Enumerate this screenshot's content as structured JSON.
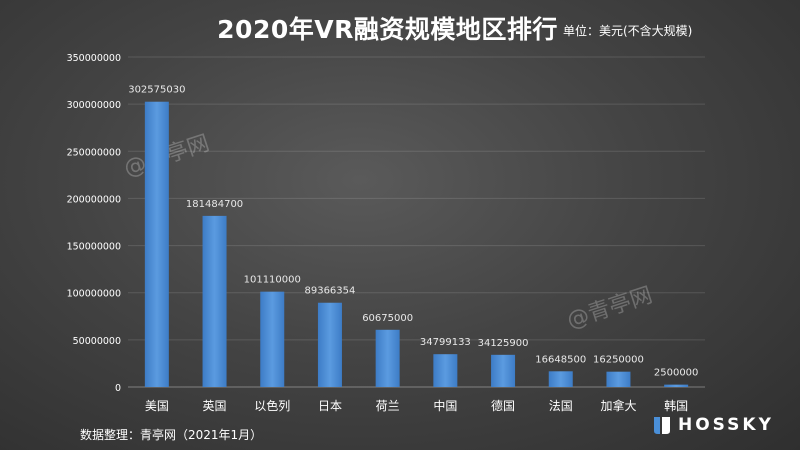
{
  "title": "2020年VR融资规模地区排行",
  "unit": "单位：美元(不含大规模)",
  "source": "数据整理：青亭网（2021年1月）",
  "watermark": "@青亭网",
  "logo": "HOSSKY",
  "colors": {
    "bar": "#5b9be0",
    "bar_dark": "#3d7cc6",
    "text": "#ffffff",
    "label": "#e8e8e8"
  },
  "chart_data": {
    "type": "bar",
    "categories": [
      "美国",
      "英国",
      "以色列",
      "日本",
      "荷兰",
      "中国",
      "德国",
      "法国",
      "加拿大",
      "韩国"
    ],
    "values": [
      302575030,
      181484700,
      101110000,
      89366354,
      60675000,
      34799133,
      34125900,
      16648500,
      16250000,
      2500000
    ],
    "data_labels": [
      "302575030",
      "181484700",
      "101110000",
      "89366354",
      "60675000",
      "34799133",
      "34125900",
      "16648500",
      "16250000",
      "2500000"
    ],
    "ylim": [
      0,
      350000000
    ],
    "yticks": [
      0,
      50000000,
      100000000,
      150000000,
      200000000,
      250000000,
      300000000,
      350000000
    ],
    "ytick_labels": [
      "0",
      "50000000",
      "100000000",
      "150000000",
      "200000000",
      "250000000",
      "300000000",
      "350000000"
    ],
    "grid": true
  }
}
